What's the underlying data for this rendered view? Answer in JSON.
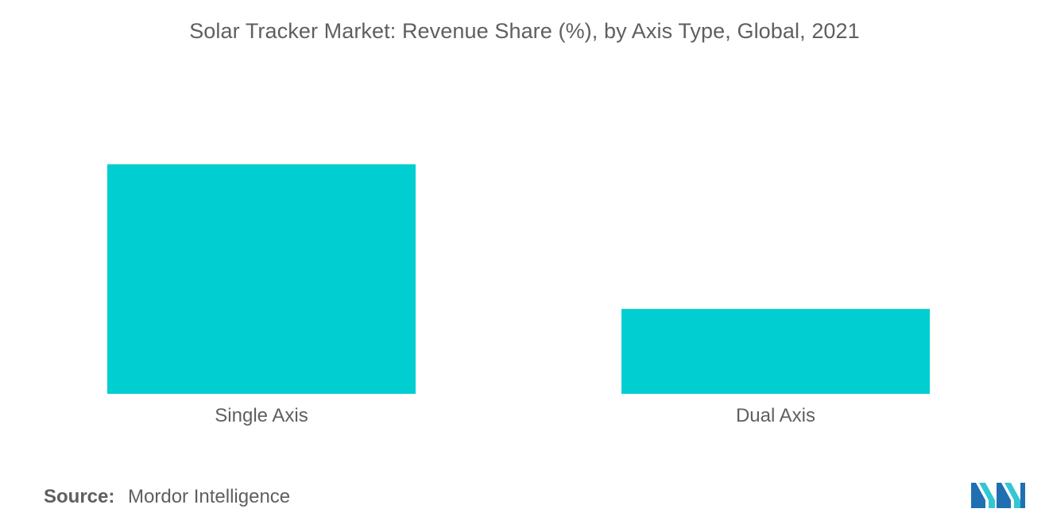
{
  "chart_data": {
    "type": "bar",
    "title": "Solar Tracker Market: Revenue Share (%), by Axis Type, Global, 2021",
    "categories": [
      "Single Axis",
      "Dual Axis"
    ],
    "values": [
      73,
      27
    ],
    "xlabel": "",
    "ylabel": "",
    "ylim": [
      0,
      100
    ],
    "grid": false,
    "legend": "none",
    "bar_color": "#00CED1"
  },
  "source": {
    "label": "Source:",
    "text": "Mordor Intelligence"
  },
  "logo": {
    "icon": "mordor-intelligence-logo",
    "colors": [
      "#1F6FB2",
      "#34C6D3"
    ]
  }
}
